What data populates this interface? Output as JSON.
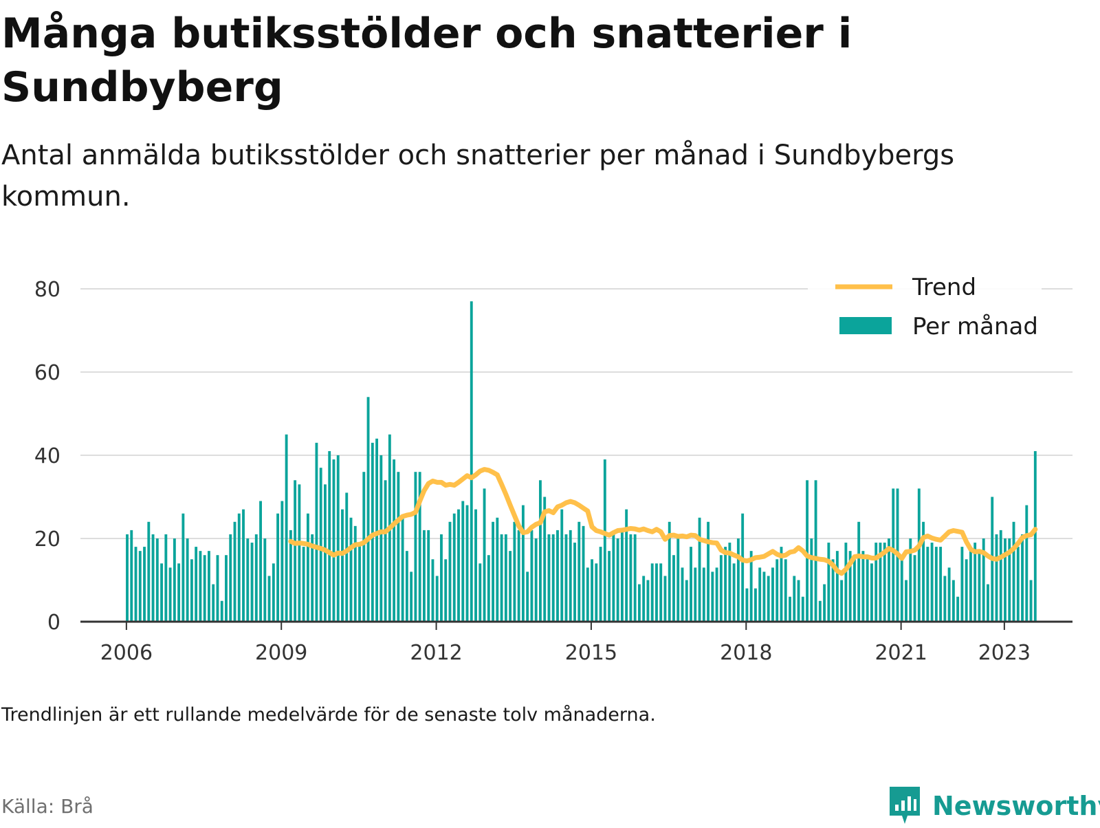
{
  "header": {
    "title": "Många butiksstölder och snatterier i Sundbyberg",
    "subtitle": "Antal anmälda butiksstölder och snatterier per månad i Sundbybergs kommun."
  },
  "footer": {
    "note": "Trendlinjen är ett rullande medelvärde för de senaste tolv månaderna.",
    "source": "Källa: Brå",
    "brand": "Newsworthy"
  },
  "colors": {
    "bars": "#0ba49b",
    "trend": "#ffc04a",
    "grid": "#dddddd",
    "axis": "#333333",
    "brand": "#169b92"
  },
  "chart_data": {
    "type": "bar",
    "x_start": "2006-01",
    "x_ticks": [
      "2006",
      "2009",
      "2012",
      "2015",
      "2018",
      "2021",
      "2023"
    ],
    "y_ticks": [
      0,
      20,
      40,
      60,
      80
    ],
    "ylim": [
      0,
      80
    ],
    "grid": "horizontal",
    "legend_position": "top-right",
    "series": [
      {
        "name": "Per månad",
        "type": "bar",
        "values": [
          21,
          22,
          18,
          17,
          18,
          24,
          21,
          20,
          14,
          21,
          13,
          20,
          14,
          26,
          20,
          15,
          18,
          17,
          16,
          17,
          9,
          16,
          5,
          16,
          21,
          24,
          26,
          27,
          20,
          19,
          21,
          29,
          20,
          11,
          14,
          26,
          29,
          45,
          22,
          34,
          33,
          18,
          26,
          21,
          43,
          37,
          33,
          41,
          39,
          40,
          27,
          31,
          25,
          23,
          19,
          36,
          54,
          43,
          44,
          40,
          34,
          45,
          39,
          36,
          25,
          17,
          12,
          36,
          36,
          22,
          22,
          15,
          11,
          21,
          15,
          24,
          26,
          27,
          29,
          28,
          77,
          27,
          14,
          32,
          16,
          24,
          25,
          21,
          21,
          17,
          24,
          22,
          28,
          12,
          22,
          20,
          34,
          30,
          21,
          21,
          22,
          27,
          21,
          22,
          19,
          24,
          23,
          13,
          15,
          14,
          18,
          39,
          17,
          21,
          20,
          22,
          27,
          21,
          21,
          9,
          11,
          10,
          14,
          14,
          14,
          11,
          24,
          16,
          20,
          13,
          10,
          18,
          13,
          25,
          13,
          24,
          12,
          13,
          16,
          18,
          19,
          14,
          20,
          26,
          8,
          17,
          8,
          13,
          12,
          11,
          13,
          15,
          18,
          15,
          6,
          11,
          10,
          6,
          34,
          20,
          34,
          5,
          9,
          19,
          15,
          17,
          10,
          19,
          17,
          15,
          24,
          17,
          15,
          14,
          19,
          19,
          19,
          20,
          32,
          32,
          15,
          10,
          20,
          16,
          32,
          24,
          18,
          19,
          18,
          18,
          11,
          13,
          10,
          6,
          18,
          15,
          18,
          19,
          17,
          20,
          9,
          30,
          21,
          22,
          20,
          20,
          24,
          18,
          21,
          28,
          10,
          41
        ]
      },
      {
        "name": "Trend",
        "type": "line",
        "values": [
          19.3,
          18.8,
          18.9,
          18.8,
          18.6,
          18.2,
          17.9,
          17.6,
          17.2,
          16.6,
          16.0,
          16.5,
          16.4,
          17.0,
          17.8,
          18.5,
          18.6,
          19.0,
          19.9,
          20.8,
          21.2,
          21.6,
          21.6,
          22.5,
          23.5,
          24.4,
          25.3,
          25.6,
          25.8,
          26.3,
          29.0,
          31.5,
          33.2,
          33.8,
          33.5,
          33.5,
          32.8,
          33.0,
          32.8,
          33.5,
          34.3,
          35.1,
          34.6,
          35.3,
          36.2,
          36.6,
          36.4,
          35.9,
          35.3,
          33.0,
          30.6,
          28.0,
          25.5,
          23.0,
          21.4,
          21.6,
          22.7,
          23.4,
          23.8,
          26.4,
          26.7,
          26.2,
          27.6,
          28.0,
          28.6,
          28.9,
          28.6,
          28.0,
          27.3,
          26.6,
          22.8,
          21.9,
          21.6,
          21.2,
          20.8,
          21.4,
          21.9,
          22.0,
          22.2,
          22.4,
          22.3,
          22.0,
          22.3,
          21.9,
          21.6,
          22.2,
          21.6,
          19.8,
          20.7,
          20.8,
          20.5,
          20.6,
          20.4,
          20.8,
          20.7,
          19.8,
          19.5,
          19.2,
          19.0,
          18.9,
          17.2,
          16.6,
          16.5,
          16.0,
          15.6,
          14.8,
          14.6,
          14.9,
          15.4,
          15.5,
          15.7,
          16.3,
          16.9,
          16.2,
          15.8,
          16.0,
          16.7,
          16.9,
          17.8,
          17.0,
          15.8,
          15.4,
          15.2,
          15.0,
          14.9,
          14.5,
          13.6,
          12.2,
          11.6,
          12.6,
          14.0,
          15.6,
          15.8,
          15.6,
          15.6,
          15.3,
          15.3,
          16.0,
          16.7,
          17.6,
          17.1,
          16.3,
          15.2,
          16.8,
          16.9,
          17.2,
          18.2,
          20.2,
          20.6,
          20.1,
          19.8,
          19.6,
          20.6,
          21.6,
          21.9,
          21.7,
          21.5,
          19.2,
          17.4,
          16.8,
          16.9,
          16.6,
          15.8,
          15.2,
          15.0,
          15.5,
          16.1,
          16.7,
          17.6,
          18.8,
          20.2,
          20.7,
          20.9,
          22.2
        ]
      }
    ]
  }
}
